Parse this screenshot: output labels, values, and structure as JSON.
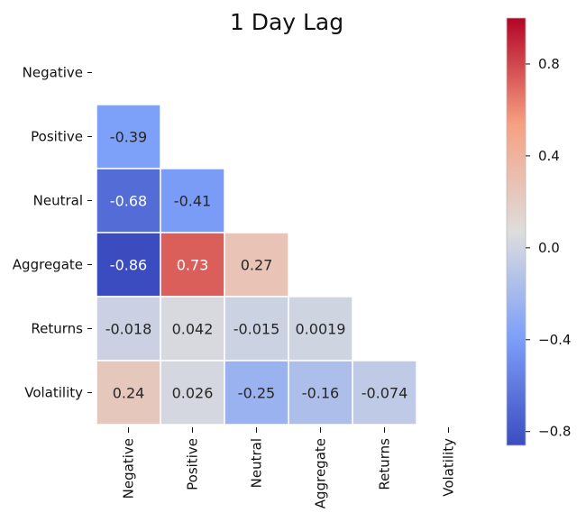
{
  "chart_data": {
    "type": "heatmap",
    "title": "1 Day Lag",
    "row_labels": [
      "Negative",
      "Positive",
      "Neutral",
      "Aggregate",
      "Returns",
      "Volatility"
    ],
    "col_labels": [
      "Negative",
      "Positive",
      "Neutral",
      "Aggregate",
      "Returns",
      "Volatility"
    ],
    "mask": "upper-triangle-including-diagonal",
    "matrix": [
      [
        null,
        null,
        null,
        null,
        null,
        null
      ],
      [
        -0.39,
        null,
        null,
        null,
        null,
        null
      ],
      [
        -0.68,
        -0.41,
        null,
        null,
        null,
        null
      ],
      [
        -0.86,
        0.73,
        0.27,
        null,
        null,
        null
      ],
      [
        -0.018,
        0.042,
        -0.015,
        0.0019,
        null,
        null
      ],
      [
        0.24,
        0.026,
        -0.25,
        -0.16,
        -0.074,
        null
      ]
    ],
    "cell_labels": [
      [
        null,
        null,
        null,
        null,
        null,
        null
      ],
      [
        "-0.39",
        null,
        null,
        null,
        null,
        null
      ],
      [
        "-0.68",
        "-0.41",
        null,
        null,
        null,
        null
      ],
      [
        "-0.86",
        "0.73",
        "0.27",
        null,
        null,
        null
      ],
      [
        "-0.018",
        "0.042",
        "-0.015",
        "0.0019",
        null,
        null
      ],
      [
        "0.24",
        "0.026",
        "-0.25",
        "-0.16",
        "-0.074",
        null
      ]
    ],
    "colormap": "coolwarm",
    "vmin": -0.86,
    "vmax": 1.0,
    "colorbar_ticks": [
      0.8,
      0.4,
      0.0,
      -0.4,
      -0.8
    ],
    "colorbar_tick_labels": [
      "0.8",
      "0.4",
      "0.0",
      "−0.4",
      "−0.8"
    ],
    "colorbar_placement": "right"
  }
}
